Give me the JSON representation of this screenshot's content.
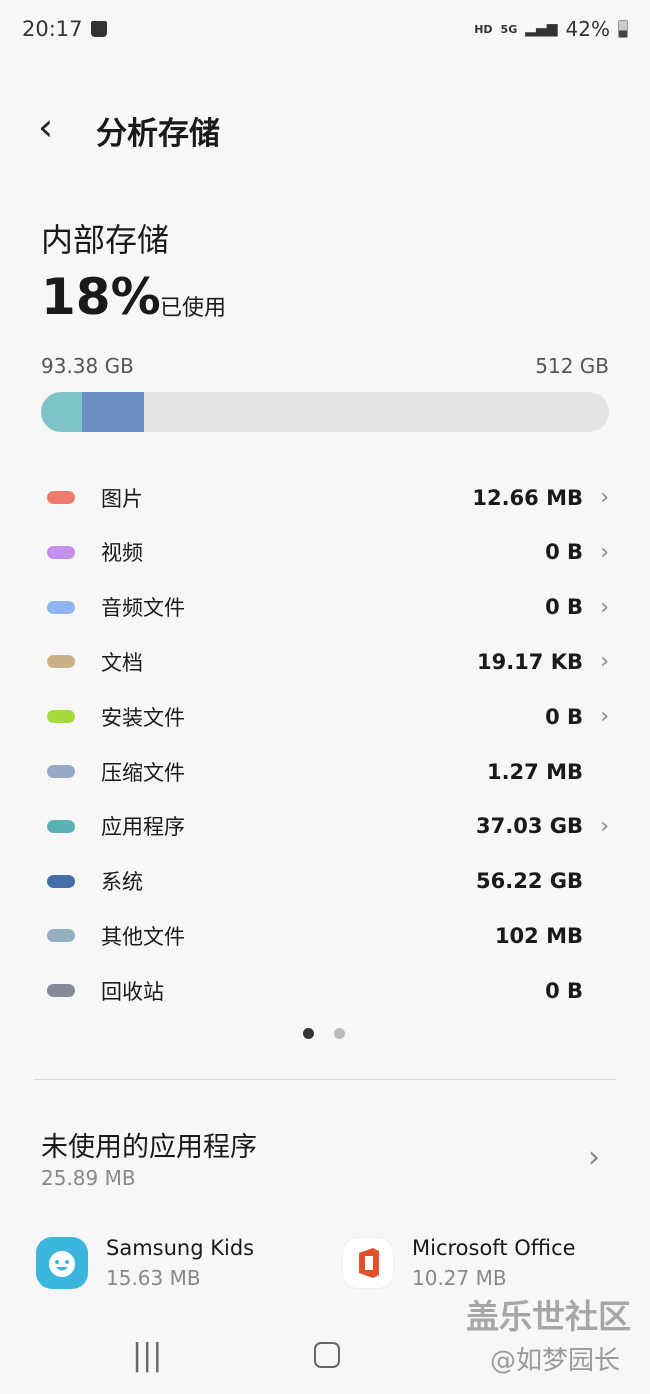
{
  "status_bar": {
    "time": "20:17",
    "hd": "HD",
    "network": "5G",
    "battery": "42%"
  },
  "header": {
    "title": "分析存储"
  },
  "storage": {
    "title": "内部存储",
    "percent": "18%",
    "used_label": "已使用",
    "used": "93.38 GB",
    "total": "512 GB",
    "bar_segments": [
      {
        "name": "应用程序",
        "fraction": 0.072,
        "color": "#7ec3c8"
      },
      {
        "name": "系统",
        "fraction": 0.11,
        "color": "#6a8fc0"
      }
    ]
  },
  "categories": [
    {
      "label": "图片",
      "value": "12.66 MB",
      "color": "#ee7c6e",
      "chevron": true
    },
    {
      "label": "视频",
      "value": "0 B",
      "color": "#c58fee",
      "chevron": true
    },
    {
      "label": "音频文件",
      "value": "0 B",
      "color": "#8fb4f2",
      "chevron": true
    },
    {
      "label": "文档",
      "value": "19.17 KB",
      "color": "#ccb089",
      "chevron": true
    },
    {
      "label": "安装文件",
      "value": "0 B",
      "color": "#a5da3c",
      "chevron": true
    },
    {
      "label": "压缩文件",
      "value": "1.27 MB",
      "color": "#97a9c6",
      "chevron": false
    },
    {
      "label": "应用程序",
      "value": "37.03 GB",
      "color": "#5bb2b6",
      "chevron": true
    },
    {
      "label": "系统",
      "value": "56.22 GB",
      "color": "#456ea8",
      "chevron": false
    },
    {
      "label": "其他文件",
      "value": "102 MB",
      "color": "#95afc2",
      "chevron": false
    },
    {
      "label": "回收站",
      "value": "0 B",
      "color": "#878a96",
      "chevron": false
    }
  ],
  "pager": {
    "pages": 2,
    "current": 1
  },
  "unused_apps": {
    "title": "未使用的应用程序",
    "size": "25.89 MB",
    "apps": [
      {
        "name": "Samsung Kids",
        "size": "15.63 MB"
      },
      {
        "name": "Microsoft Office",
        "size": "10.27 MB"
      }
    ]
  },
  "watermark": {
    "line1": "盖乐世社区",
    "line2": "@如梦园长"
  }
}
